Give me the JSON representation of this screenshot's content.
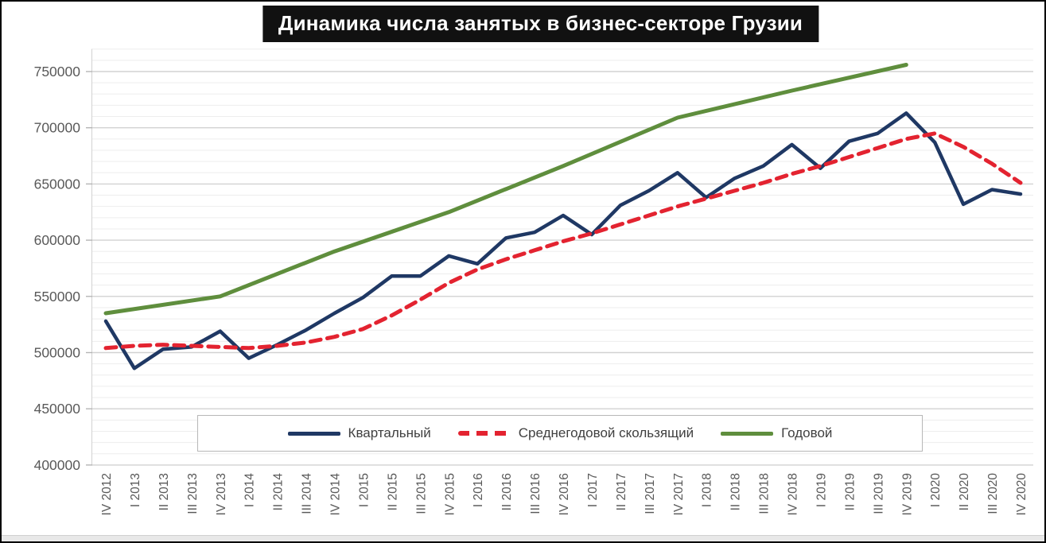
{
  "title": "Динамика числа занятых в бизнес-секторе Грузии",
  "colors": {
    "quarterly": "#1f3864",
    "moving_avg": "#e32330",
    "annual": "#5f8e3d",
    "axis_text": "#595959",
    "grid_minor": "#ededed",
    "grid_major": "#d2d2d2",
    "tick_mark": "#b5b5b5",
    "title_bg": "#111111",
    "title_text": "#ffffff",
    "legend_border": "#b7b7b7"
  },
  "legend": {
    "items": [
      {
        "label": "Квартальный",
        "series_key": "quarterly",
        "style": "solid"
      },
      {
        "label": "Среднегодовой скользящий",
        "series_key": "moving_avg",
        "style": "dashed"
      },
      {
        "label": "Годовой",
        "series_key": "annual",
        "style": "solid"
      }
    ]
  },
  "y_axis": {
    "min": 400000,
    "max": 770000,
    "major_step": 50000,
    "minor_step": 10000,
    "tick_labels": [
      "750000",
      "700000",
      "650000",
      "600000",
      "550000",
      "500000",
      "450000",
      "400000"
    ],
    "tick_values": [
      750000,
      700000,
      650000,
      600000,
      550000,
      500000,
      450000,
      400000
    ]
  },
  "chart_data": {
    "type": "line",
    "title": "Динамика числа занятых в бизнес-секторе Грузии",
    "xlabel": "",
    "ylabel": "",
    "ylim": [
      400000,
      770000
    ],
    "grid": true,
    "legend_position": "bottom-inside",
    "categories": [
      "IV 2012",
      "I 2013",
      "II 2013",
      "III 2013",
      "IV 2013",
      "I 2014",
      "II 2014",
      "III 2014",
      "IV 2014",
      "I 2015",
      "II 2015",
      "III 2015",
      "IV 2015",
      "I 2016",
      "II 2016",
      "III 2016",
      "IV 2016",
      "I 2017",
      "II 2017",
      "III 2017",
      "IV 2017",
      "I 2018",
      "II 2018",
      "III 2018",
      "IV 2018",
      "I 2019",
      "II 2019",
      "III 2019",
      "IV 2019",
      "I 2020",
      "II 2020",
      "III 2020",
      "IV 2020"
    ],
    "series": [
      {
        "key": "quarterly",
        "name": "Квартальный",
        "color": "#1f3864",
        "dash": false,
        "values": [
          528000,
          486000,
          503000,
          505000,
          519000,
          495000,
          507000,
          520000,
          535000,
          549000,
          568000,
          568000,
          586000,
          579000,
          602000,
          607000,
          622000,
          605000,
          631000,
          644000,
          660000,
          638000,
          655000,
          666000,
          685000,
          664000,
          688000,
          695000,
          713000,
          687000,
          632000,
          645000,
          641000
        ]
      },
      {
        "key": "moving_avg",
        "name": "Среднегодовой скользящий",
        "color": "#e32330",
        "dash": true,
        "values": [
          504000,
          506000,
          507000,
          506000,
          505000,
          504000,
          506000,
          509000,
          514000,
          521000,
          533000,
          547000,
          562000,
          574000,
          583000,
          591000,
          599000,
          606000,
          614000,
          622000,
          630000,
          637000,
          644000,
          651000,
          659000,
          666000,
          674000,
          682000,
          690000,
          695000,
          683000,
          668000,
          651000
        ]
      },
      {
        "key": "annual",
        "name": "Годовой",
        "color": "#5f8e3d",
        "dash": false,
        "x_indices": [
          0,
          4,
          8,
          12,
          16,
          20,
          24,
          28
        ],
        "values": [
          535000,
          550000,
          590000,
          625000,
          666000,
          709000,
          733000,
          756000
        ]
      }
    ]
  }
}
